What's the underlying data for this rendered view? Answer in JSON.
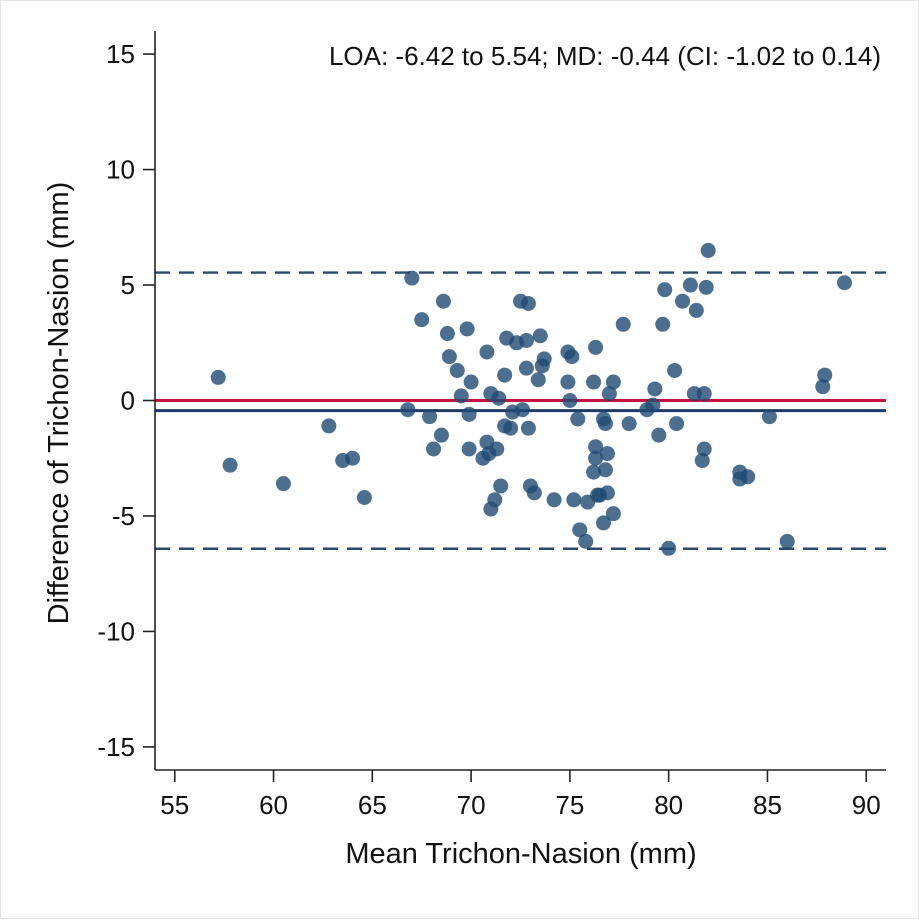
{
  "chart_data": {
    "type": "scatter",
    "title": "",
    "annotation": "LOA: -6.42 to 5.54; MD: -0.44 (CI: -1.02 to 0.14)",
    "xlabel": "Mean Trichon-Nasion (mm)",
    "ylabel": "Difference of Trichon-Nasion (mm)",
    "xlim": [
      54,
      91
    ],
    "ylim": [
      -16,
      16
    ],
    "xticks": [
      55,
      60,
      65,
      70,
      75,
      80,
      85,
      90
    ],
    "yticks": [
      -15,
      -10,
      -5,
      0,
      5,
      10,
      15
    ],
    "grid": false,
    "reference_lines": [
      {
        "value": 5.54,
        "style": "dashed",
        "color": "#2b4a6b"
      },
      {
        "value": -6.42,
        "style": "dashed",
        "color": "#2b4a6b"
      },
      {
        "value": 0,
        "style": "solid",
        "color": "#c3153f"
      },
      {
        "value": -0.44,
        "style": "solid",
        "color": "#1e3a66"
      }
    ],
    "point_color": "#1f4a73",
    "points": [
      [
        57.2,
        1.0
      ],
      [
        57.8,
        -2.8
      ],
      [
        60.5,
        -3.6
      ],
      [
        62.8,
        -1.1
      ],
      [
        63.5,
        -2.6
      ],
      [
        64.0,
        -2.5
      ],
      [
        64.6,
        -4.2
      ],
      [
        66.8,
        -0.4
      ],
      [
        67.0,
        5.3
      ],
      [
        67.5,
        3.5
      ],
      [
        67.9,
        -0.7
      ],
      [
        68.1,
        -2.1
      ],
      [
        68.5,
        -1.5
      ],
      [
        68.6,
        4.3
      ],
      [
        68.8,
        2.9
      ],
      [
        68.9,
        1.9
      ],
      [
        69.3,
        1.3
      ],
      [
        69.5,
        0.2
      ],
      [
        69.8,
        3.1
      ],
      [
        69.9,
        -0.6
      ],
      [
        70.0,
        0.8
      ],
      [
        69.9,
        -2.1
      ],
      [
        70.6,
        -2.5
      ],
      [
        70.8,
        2.1
      ],
      [
        70.8,
        -1.8
      ],
      [
        70.9,
        -2.3
      ],
      [
        71.0,
        -4.7
      ],
      [
        71.0,
        0.3
      ],
      [
        71.2,
        -4.3
      ],
      [
        71.3,
        -2.1
      ],
      [
        71.4,
        0.1
      ],
      [
        71.5,
        -3.7
      ],
      [
        71.7,
        1.1
      ],
      [
        71.7,
        -1.1
      ],
      [
        71.8,
        2.7
      ],
      [
        72.0,
        -1.2
      ],
      [
        72.1,
        -0.5
      ],
      [
        72.3,
        2.5
      ],
      [
        72.5,
        4.3
      ],
      [
        72.6,
        -0.4
      ],
      [
        72.8,
        2.6
      ],
      [
        72.8,
        1.4
      ],
      [
        72.9,
        4.2
      ],
      [
        72.9,
        -1.2
      ],
      [
        73.0,
        -3.7
      ],
      [
        73.2,
        -4.0
      ],
      [
        73.4,
        0.9
      ],
      [
        73.5,
        2.8
      ],
      [
        73.6,
        1.5
      ],
      [
        73.7,
        1.8
      ],
      [
        74.2,
        -4.3
      ],
      [
        74.9,
        2.1
      ],
      [
        74.9,
        0.8
      ],
      [
        75.0,
        0.0
      ],
      [
        75.1,
        1.9
      ],
      [
        75.2,
        -4.3
      ],
      [
        75.4,
        -0.8
      ],
      [
        75.5,
        -5.6
      ],
      [
        75.8,
        -6.1
      ],
      [
        75.9,
        -4.4
      ],
      [
        76.2,
        -3.1
      ],
      [
        76.2,
        0.8
      ],
      [
        76.3,
        2.3
      ],
      [
        76.3,
        -2.5
      ],
      [
        76.3,
        -2.0
      ],
      [
        76.4,
        -4.1
      ],
      [
        76.5,
        -4.1
      ],
      [
        76.7,
        -0.8
      ],
      [
        76.7,
        -5.3
      ],
      [
        76.8,
        -1.0
      ],
      [
        76.8,
        -3.0
      ],
      [
        76.9,
        -4.0
      ],
      [
        76.9,
        -2.3
      ],
      [
        77.0,
        0.3
      ],
      [
        77.2,
        0.8
      ],
      [
        77.2,
        -4.9
      ],
      [
        77.7,
        3.3
      ],
      [
        78.0,
        -1.0
      ],
      [
        78.9,
        -0.4
      ],
      [
        79.2,
        -0.2
      ],
      [
        79.3,
        0.5
      ],
      [
        79.5,
        -1.5
      ],
      [
        79.7,
        3.3
      ],
      [
        79.8,
        4.8
      ],
      [
        80.0,
        -6.4
      ],
      [
        80.3,
        1.3
      ],
      [
        80.4,
        -1.0
      ],
      [
        80.7,
        4.3
      ],
      [
        81.1,
        5.0
      ],
      [
        81.3,
        0.3
      ],
      [
        81.4,
        3.9
      ],
      [
        81.7,
        -2.6
      ],
      [
        81.8,
        -2.1
      ],
      [
        81.8,
        0.3
      ],
      [
        81.9,
        4.9
      ],
      [
        82.0,
        6.5
      ],
      [
        83.6,
        -3.1
      ],
      [
        83.6,
        -3.4
      ],
      [
        84.0,
        -3.3
      ],
      [
        85.1,
        -0.7
      ],
      [
        86.0,
        -6.1
      ],
      [
        87.8,
        0.6
      ],
      [
        87.9,
        1.1
      ],
      [
        88.9,
        5.1
      ]
    ]
  }
}
